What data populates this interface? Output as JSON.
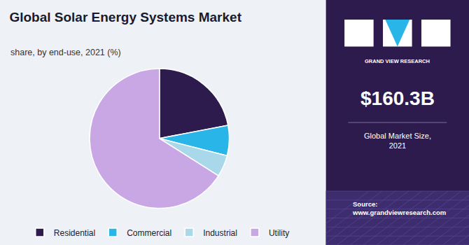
{
  "chart_data": {
    "type": "pie",
    "title": "Global Solar Energy Systems Market",
    "subtitle": "share, by end-use, 2021 (%)",
    "categories": [
      "Residential",
      "Commercial",
      "Industrial",
      "Utility"
    ],
    "values": [
      22,
      7,
      5,
      66
    ],
    "colors": [
      "#2d1b4e",
      "#29b5e8",
      "#a8d8ea",
      "#c9a6e4"
    ],
    "legend": "bottom",
    "annotations": [
      "GRAND VIEW RESEARCH",
      "$160.3B",
      "Global Market Size,\n2021",
      "Source:\nwww.grandviewresearch.com"
    ]
  }
}
